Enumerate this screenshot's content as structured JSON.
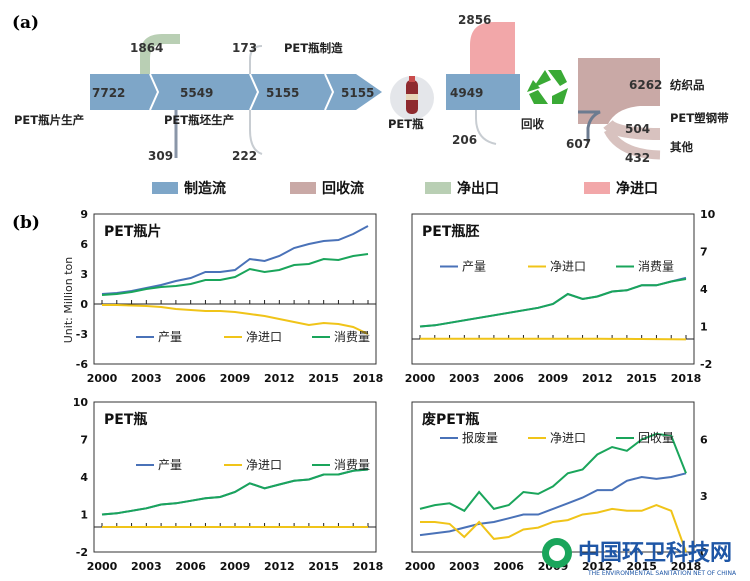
{
  "panel_a": {
    "letter": "(a)",
    "values": {
      "v7722": "7722",
      "v1864": "1864",
      "v5549": "5549",
      "v173": "173",
      "v5155a": "5155",
      "v5155b": "5155",
      "v309": "309",
      "v222": "222",
      "v4949": "4949",
      "v2856": "2856",
      "v206": "206",
      "v6262": "6262",
      "v607": "607",
      "v504": "504",
      "v432": "432"
    },
    "nodes": {
      "flake_prod": "PET瓶片生产",
      "preform_prod": "PET瓶坯生产",
      "bottle_mfg": "PET瓶制造",
      "bottle": "PET瓶",
      "recycle": "回收",
      "textile": "纺织品",
      "strap": "PET塑钢带",
      "other": "其他"
    },
    "legend": [
      {
        "label": "制造流",
        "color": "#7ea6c8"
      },
      {
        "label": "回收流",
        "color": "#c9a9a6"
      },
      {
        "label": "净出口",
        "color": "#b9cfb4"
      },
      {
        "label": "净进口",
        "color": "#f2a7a9"
      }
    ]
  },
  "panel_b": {
    "letter": "(b)",
    "ylabel": "Unit: Million ton",
    "colors": {
      "s1": "#4a72b8",
      "s2": "#f0c419",
      "s3": "#1aa55b"
    }
  },
  "watermark": {
    "cn": "中国环卫科技网",
    "en": "THE ENVIRONMENTAL SANITATION NET OF CHINA"
  },
  "chart_data": [
    {
      "type": "line",
      "title": "PET瓶片",
      "x": [
        2000,
        2001,
        2002,
        2003,
        2004,
        2005,
        2006,
        2007,
        2008,
        2009,
        2010,
        2011,
        2012,
        2013,
        2014,
        2015,
        2016,
        2017,
        2018
      ],
      "xticks": [
        "2000",
        "2003",
        "2006",
        "2009",
        "2012",
        "2015",
        "2018"
      ],
      "ylim": [
        -6,
        9
      ],
      "yticks": [
        "9",
        "6",
        "3",
        "0",
        "-3",
        "-6"
      ],
      "series": [
        {
          "name": "产量",
          "values": [
            1.0,
            1.1,
            1.3,
            1.6,
            1.9,
            2.3,
            2.6,
            3.2,
            3.2,
            3.4,
            4.5,
            4.3,
            4.8,
            5.6,
            6.0,
            6.3,
            6.4,
            7.0,
            7.8
          ]
        },
        {
          "name": "净进口",
          "values": [
            -0.1,
            -0.1,
            -0.15,
            -0.2,
            -0.3,
            -0.5,
            -0.6,
            -0.7,
            -0.7,
            -0.8,
            -1.0,
            -1.2,
            -1.5,
            -1.8,
            -2.1,
            -1.9,
            -2.0,
            -2.3,
            -3.0
          ]
        },
        {
          "name": "消费量",
          "values": [
            0.9,
            1.0,
            1.2,
            1.5,
            1.7,
            1.8,
            2.0,
            2.4,
            2.4,
            2.7,
            3.5,
            3.2,
            3.4,
            3.9,
            4.0,
            4.5,
            4.4,
            4.8,
            5.0
          ]
        }
      ]
    },
    {
      "type": "line",
      "title": "PET瓶胚",
      "x": [
        2000,
        2001,
        2002,
        2003,
        2004,
        2005,
        2006,
        2007,
        2008,
        2009,
        2010,
        2011,
        2012,
        2013,
        2014,
        2015,
        2016,
        2017,
        2018
      ],
      "xticks": [
        "2000",
        "2003",
        "2006",
        "2009",
        "2012",
        "2015",
        "2018"
      ],
      "ylim": [
        -2,
        10
      ],
      "yticks": [
        "10",
        "7",
        "4",
        "1",
        "-2"
      ],
      "series": [
        {
          "name": "产量",
          "values": [
            1.0,
            1.1,
            1.3,
            1.5,
            1.7,
            1.9,
            2.1,
            2.3,
            2.5,
            2.8,
            3.6,
            3.2,
            3.4,
            3.8,
            3.9,
            4.3,
            4.3,
            4.6,
            4.9
          ]
        },
        {
          "name": "净进口",
          "values": [
            0.02,
            0.02,
            0.02,
            0.02,
            0.02,
            0.02,
            0.02,
            0.02,
            0.02,
            0.02,
            0.02,
            0.02,
            0.02,
            0.01,
            0.01,
            0.0,
            -0.01,
            -0.02,
            -0.03
          ]
        },
        {
          "name": "消费量",
          "values": [
            1.0,
            1.1,
            1.3,
            1.5,
            1.7,
            1.9,
            2.1,
            2.3,
            2.5,
            2.8,
            3.6,
            3.2,
            3.4,
            3.8,
            3.9,
            4.3,
            4.3,
            4.6,
            4.8
          ]
        }
      ]
    },
    {
      "type": "line",
      "title": "PET瓶",
      "x": [
        2000,
        2001,
        2002,
        2003,
        2004,
        2005,
        2006,
        2007,
        2008,
        2009,
        2010,
        2011,
        2012,
        2013,
        2014,
        2015,
        2016,
        2017,
        2018
      ],
      "xticks": [
        "2000",
        "2003",
        "2006",
        "2009",
        "2012",
        "2015",
        "2018"
      ],
      "ylim": [
        -2,
        10
      ],
      "yticks": [
        "10",
        "7",
        "4",
        "1",
        "-2"
      ],
      "series": [
        {
          "name": "产量",
          "values": [
            1.0,
            1.1,
            1.3,
            1.5,
            1.8,
            1.9,
            2.1,
            2.3,
            2.4,
            2.8,
            3.5,
            3.1,
            3.4,
            3.7,
            3.8,
            4.2,
            4.2,
            4.5,
            4.6
          ]
        },
        {
          "name": "净进口",
          "values": [
            0,
            0,
            0,
            0,
            0,
            0,
            0,
            0,
            0,
            0,
            0,
            0,
            0,
            0,
            0,
            0,
            0,
            0,
            0
          ]
        },
        {
          "name": "消费量",
          "values": [
            1.0,
            1.1,
            1.3,
            1.5,
            1.8,
            1.9,
            2.1,
            2.3,
            2.4,
            2.8,
            3.5,
            3.1,
            3.4,
            3.7,
            3.8,
            4.2,
            4.2,
            4.5,
            4.6
          ]
        }
      ]
    },
    {
      "type": "line",
      "title": "废PET瓶",
      "x": [
        2000,
        2001,
        2002,
        2003,
        2004,
        2005,
        2006,
        2007,
        2008,
        2009,
        2010,
        2011,
        2012,
        2013,
        2014,
        2015,
        2016,
        2017,
        2018
      ],
      "xticks": [
        "2000",
        "2003",
        "2006",
        "2009",
        "2012",
        "2015",
        "2018"
      ],
      "ylim": [
        0,
        8
      ],
      "yticks": [
        "6",
        "3",
        "0"
      ],
      "series": [
        {
          "name": "报废量",
          "values": [
            0.9,
            1.0,
            1.1,
            1.3,
            1.5,
            1.6,
            1.8,
            2.0,
            2.0,
            2.3,
            2.6,
            2.9,
            3.3,
            3.3,
            3.8,
            4.0,
            3.9,
            4.0,
            4.2
          ]
        },
        {
          "name": "净进口",
          "values": [
            1.6,
            1.6,
            1.5,
            0.8,
            1.6,
            0.7,
            0.8,
            1.2,
            1.3,
            1.6,
            1.7,
            2.0,
            2.1,
            2.3,
            2.2,
            2.2,
            2.5,
            2.2,
            0.0
          ]
        },
        {
          "name": "回收量",
          "values": [
            2.3,
            2.5,
            2.6,
            2.2,
            3.2,
            2.3,
            2.5,
            3.2,
            3.1,
            3.5,
            4.2,
            4.4,
            5.2,
            5.6,
            5.4,
            6.0,
            6.3,
            6.2,
            4.2
          ]
        }
      ]
    }
  ]
}
